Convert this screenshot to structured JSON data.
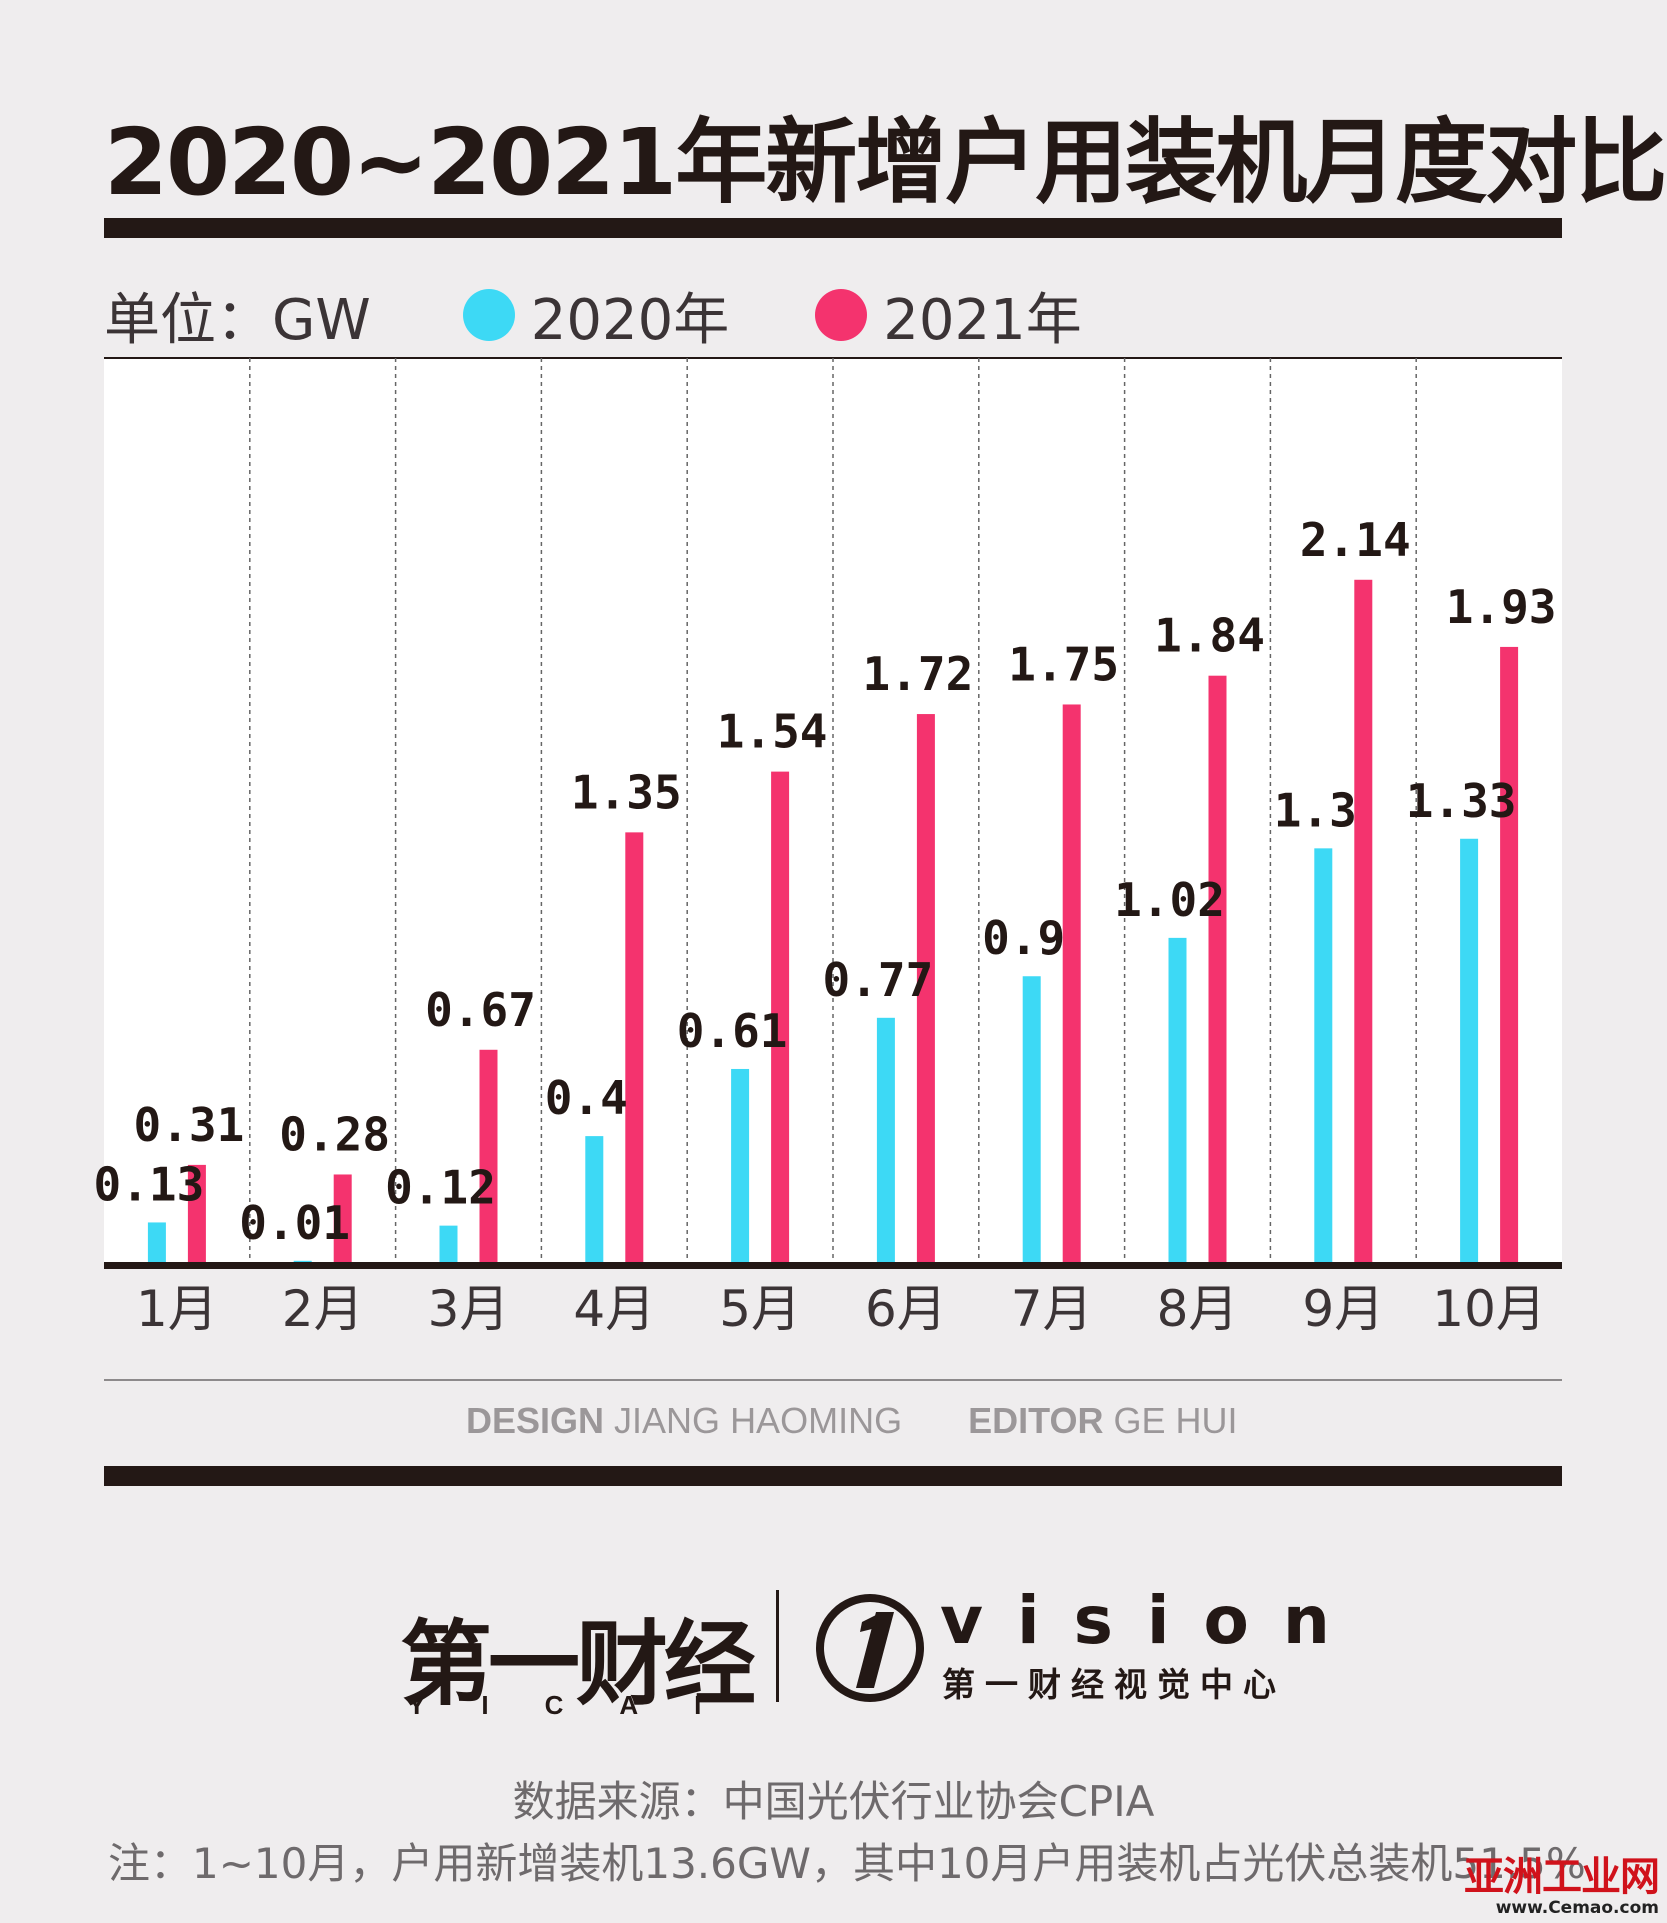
{
  "title": "2020~2021年新增户用装机月度对比",
  "legend": {
    "unit": "单位：GW",
    "items": [
      {
        "label": "2020年",
        "color": "#3dd9f5"
      },
      {
        "label": "2021年",
        "color": "#f4336e"
      }
    ]
  },
  "chart_data": {
    "type": "bar",
    "title": "2020~2021年新增户用装机月度对比",
    "ylabel": "单位：GW",
    "ylim": [
      0,
      2.6
    ],
    "categories": [
      "1月",
      "2月",
      "3月",
      "4月",
      "5月",
      "6月",
      "7月",
      "8月",
      "9月",
      "10月"
    ],
    "series": [
      {
        "name": "2020年",
        "color": "#3dd9f5",
        "values": [
          0.13,
          0.01,
          0.12,
          0.4,
          0.61,
          0.77,
          0.9,
          1.02,
          1.3,
          1.33
        ],
        "labels": [
          "0.13",
          "0.01",
          "0.12",
          "0.4",
          "0.61",
          "0.77",
          "0.9",
          "1.02",
          "1.3",
          "1.33"
        ]
      },
      {
        "name": "2021年",
        "color": "#f4336e",
        "values": [
          0.31,
          0.28,
          0.67,
          1.35,
          1.54,
          1.72,
          1.75,
          1.84,
          2.14,
          1.93
        ],
        "labels": [
          "0.31",
          "0.28",
          "0.67",
          "1.35",
          "1.54",
          "1.72",
          "1.75",
          "1.84",
          "2.14",
          "1.93"
        ]
      }
    ],
    "grid": "vertical dashed separators",
    "legend_position": "top-left"
  },
  "credits": {
    "design_label": "DESIGN",
    "design_name": "JIANG HAOMING",
    "editor_label": "EDITOR",
    "editor_name": "GE HUI"
  },
  "logos": {
    "yicai_cn": "第一财经",
    "yicai_en": "YICAI",
    "vision_word": "vision",
    "vision_sub": "第一财经视觉中心"
  },
  "source": "数据来源：中国光伏行业协会CPIA",
  "note": "注：1~10月，户用新增装机13.6GW，其中10月户用装机占光伏总装机51.5%",
  "watermark": {
    "main": "亚洲工业网",
    "sub": "www.Cemao.com"
  }
}
